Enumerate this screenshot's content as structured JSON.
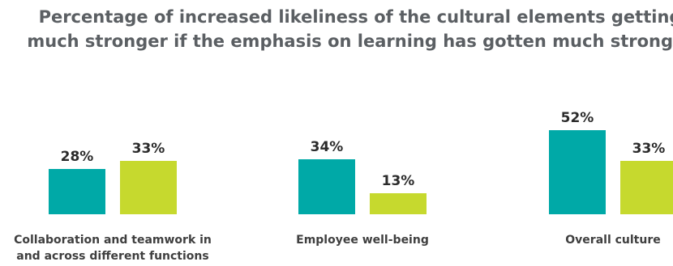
{
  "chart_data": {
    "type": "bar",
    "title_lines": [
      "Percentage of increased likeliness of the cultural elements getting",
      "much stronger if the emphasis on learning has gotten much stronger"
    ],
    "categories": [
      [
        "Collaboration and teamwork in",
        "and across different functions"
      ],
      [
        "Employee well-being"
      ],
      [
        "Overall culture"
      ]
    ],
    "series": [
      {
        "values": [
          28,
          34,
          52
        ],
        "color": "#00a9a7"
      },
      {
        "values": [
          33,
          13,
          33
        ],
        "color": "#c6d92e"
      }
    ],
    "value_suffix": "%",
    "ylim": [
      0,
      52
    ],
    "grid": false,
    "legend": "none"
  }
}
